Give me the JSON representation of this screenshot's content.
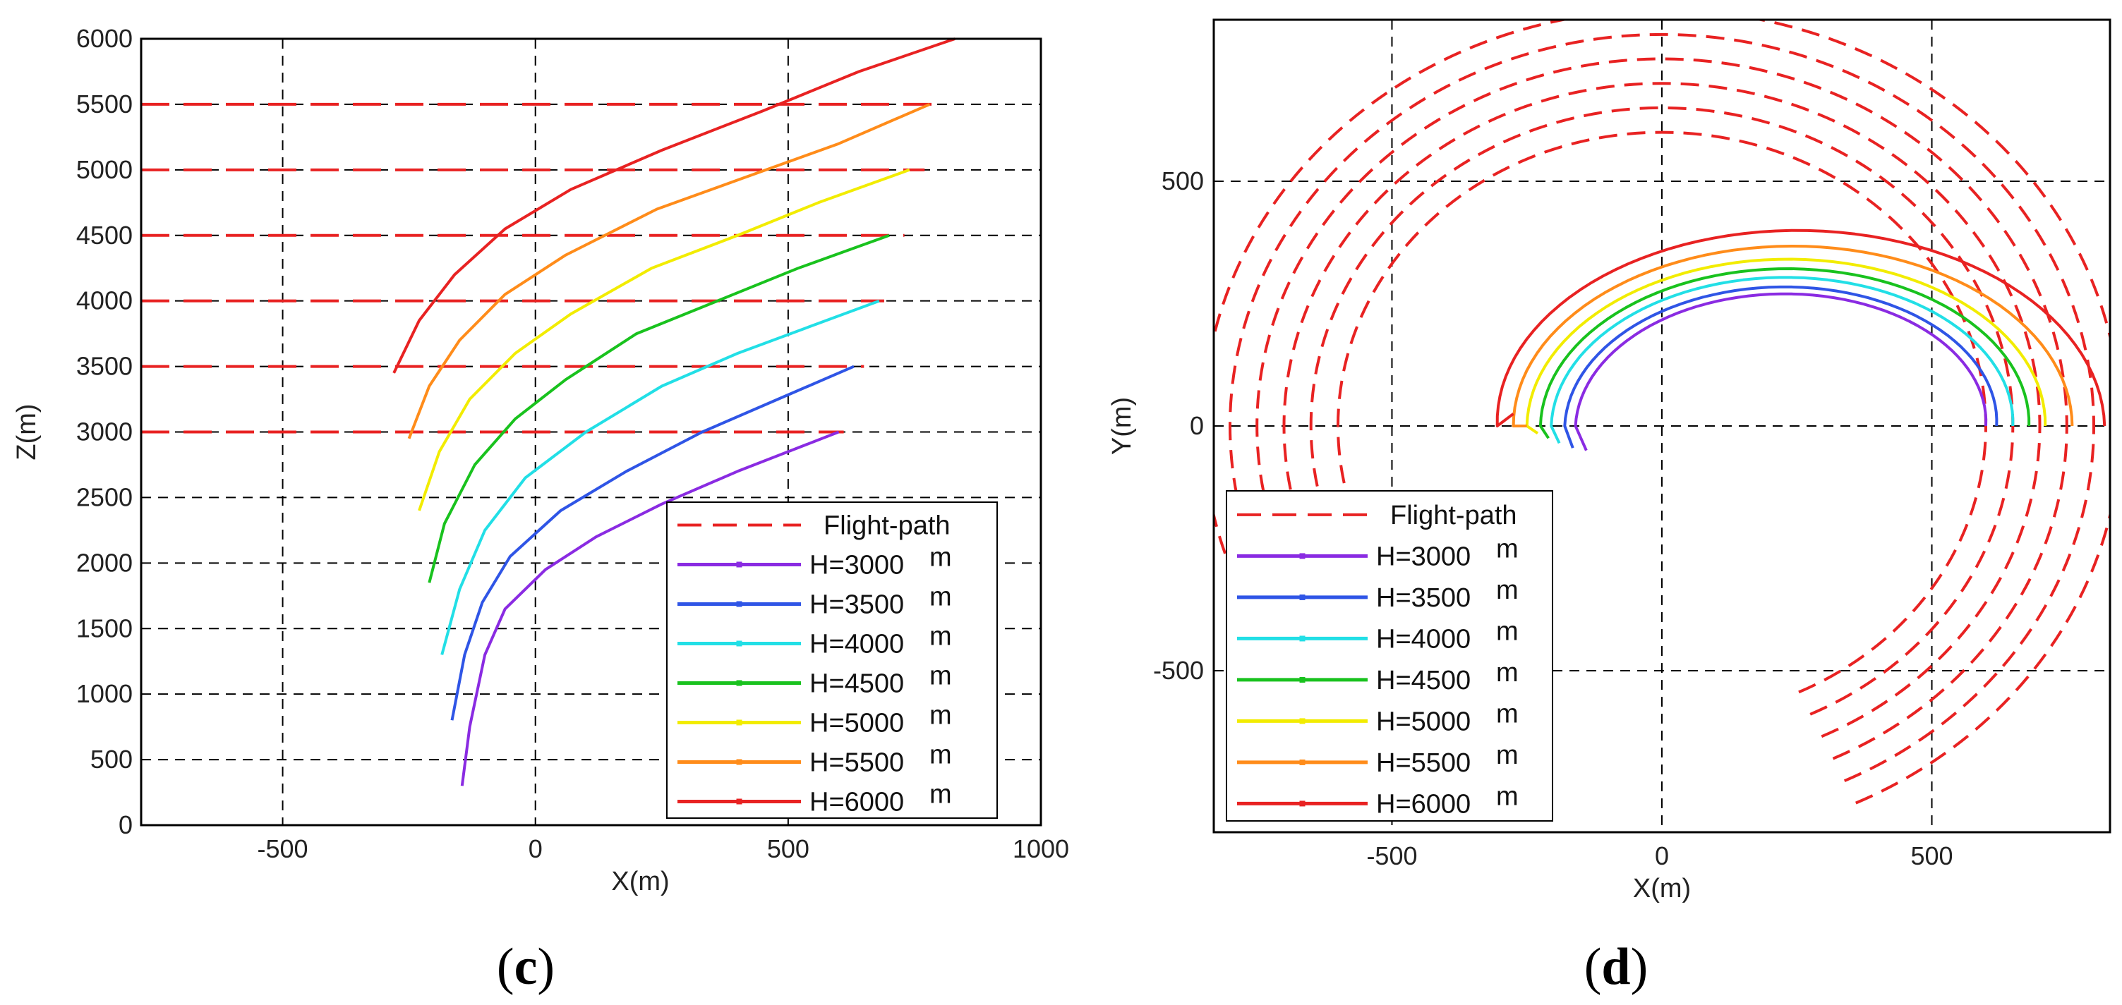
{
  "chart_data": [
    {
      "panel_label": "c",
      "type": "line",
      "xlabel": "X(m)",
      "ylabel": "Z(m)",
      "xlim": [
        -780,
        1000
      ],
      "ylim": [
        0,
        6000
      ],
      "xticks": [
        -500,
        0,
        500,
        1000
      ],
      "yticks": [
        0,
        500,
        1000,
        1500,
        2000,
        2500,
        3000,
        3500,
        4000,
        4500,
        5000,
        5500,
        6000
      ],
      "grid": true,
      "legend_position": "bottom-right",
      "flight_path_levels": [
        {
          "z": 3000,
          "x_range": [
            -780,
            610
          ]
        },
        {
          "z": 3500,
          "x_range": [
            -780,
            650
          ]
        },
        {
          "z": 4000,
          "x_range": [
            -780,
            690
          ]
        },
        {
          "z": 4500,
          "x_range": [
            -780,
            730
          ]
        },
        {
          "z": 5000,
          "x_range": [
            -780,
            770
          ]
        },
        {
          "z": 5500,
          "x_range": [
            -780,
            790
          ]
        }
      ],
      "series": [
        {
          "name": "H=3000",
          "unit": "m",
          "color": "#8a2be2",
          "points": [
            [
              -145,
              300
            ],
            [
              -130,
              750
            ],
            [
              -100,
              1300
            ],
            [
              -60,
              1650
            ],
            [
              20,
              1950
            ],
            [
              120,
              2200
            ],
            [
              250,
              2450
            ],
            [
              400,
              2700
            ],
            [
              600,
              3000
            ]
          ]
        },
        {
          "name": "H=3500",
          "unit": "m",
          "color": "#2f55e6",
          "points": [
            [
              -165,
              800
            ],
            [
              -140,
              1300
            ],
            [
              -105,
              1700
            ],
            [
              -50,
              2050
            ],
            [
              50,
              2400
            ],
            [
              180,
              2700
            ],
            [
              330,
              3000
            ],
            [
              480,
              3250
            ],
            [
              630,
              3500
            ]
          ]
        },
        {
          "name": "H=4000",
          "unit": "m",
          "color": "#22dfe6",
          "points": [
            [
              -185,
              1300
            ],
            [
              -150,
              1800
            ],
            [
              -100,
              2250
            ],
            [
              -20,
              2650
            ],
            [
              100,
              3000
            ],
            [
              250,
              3350
            ],
            [
              400,
              3600
            ],
            [
              540,
              3800
            ],
            [
              680,
              4000
            ]
          ]
        },
        {
          "name": "H=4500",
          "unit": "m",
          "color": "#19c21e",
          "points": [
            [
              -210,
              1850
            ],
            [
              -180,
              2300
            ],
            [
              -120,
              2750
            ],
            [
              -40,
              3100
            ],
            [
              60,
              3400
            ],
            [
              200,
              3750
            ],
            [
              360,
              4000
            ],
            [
              520,
              4250
            ],
            [
              700,
              4500
            ]
          ]
        },
        {
          "name": "H=5000",
          "unit": "m",
          "color": "#f2ec00",
          "points": [
            [
              -230,
              2400
            ],
            [
              -190,
              2850
            ],
            [
              -130,
              3250
            ],
            [
              -40,
              3600
            ],
            [
              70,
              3900
            ],
            [
              230,
              4250
            ],
            [
              400,
              4500
            ],
            [
              560,
              4750
            ],
            [
              740,
              5000
            ]
          ]
        },
        {
          "name": "H=5500",
          "unit": "m",
          "color": "#ff8c1a",
          "points": [
            [
              -250,
              2950
            ],
            [
              -210,
              3350
            ],
            [
              -150,
              3700
            ],
            [
              -60,
              4050
            ],
            [
              60,
              4350
            ],
            [
              240,
              4700
            ],
            [
              420,
              4950
            ],
            [
              600,
              5200
            ],
            [
              780,
              5500
            ]
          ]
        },
        {
          "name": "H=6000",
          "unit": "m",
          "color": "#e82222",
          "points": [
            [
              -280,
              3450
            ],
            [
              -230,
              3850
            ],
            [
              -160,
              4200
            ],
            [
              -60,
              4550
            ],
            [
              70,
              4850
            ],
            [
              250,
              5150
            ],
            [
              450,
              5450
            ],
            [
              640,
              5750
            ],
            [
              830,
              6000
            ]
          ]
        }
      ]
    },
    {
      "panel_label": "d",
      "type": "line",
      "xlabel": "X(m)",
      "ylabel": "Y(m)",
      "xlim": [
        -830,
        830
      ],
      "ylim": [
        -830,
        830
      ],
      "xticks": [
        -500,
        0,
        500
      ],
      "yticks": [
        -500,
        0,
        500
      ],
      "grid": true,
      "legend_position": "bottom-left",
      "flight_path_circles": {
        "radii_m": [
          600,
          650,
          700,
          750,
          800,
          850
        ],
        "hidden_arc_deg": [
          -115,
          -65
        ]
      },
      "series": [
        {
          "name": "H=3000",
          "unit": "m",
          "color": "#8a2be2",
          "arc": {
            "center": [
              240,
              0
            ],
            "r_start": 400,
            "r_end": 360,
            "deg_start": 180,
            "deg_end": 0
          },
          "tail": {
            "x": -140,
            "y": -50
          }
        },
        {
          "name": "H=3500",
          "unit": "m",
          "color": "#2f55e6",
          "arc": {
            "center": [
              240,
              0
            ],
            "r_start": 420,
            "r_end": 380,
            "deg_start": 180,
            "deg_end": 0
          },
          "tail": {
            "x": -165,
            "y": -45
          }
        },
        {
          "name": "H=4000",
          "unit": "m",
          "color": "#22dfe6",
          "arc": {
            "center": [
              240,
              0
            ],
            "r_start": 445,
            "r_end": 410,
            "deg_start": 180,
            "deg_end": 0
          },
          "tail": {
            "x": -190,
            "y": -35
          }
        },
        {
          "name": "H=4500",
          "unit": "m",
          "color": "#19c21e",
          "arc": {
            "center": [
              240,
              0
            ],
            "r_start": 465,
            "r_end": 440,
            "deg_start": 180,
            "deg_end": 0
          },
          "tail": {
            "x": -210,
            "y": -25
          }
        },
        {
          "name": "H=5000",
          "unit": "m",
          "color": "#f2ec00",
          "arc": {
            "center": [
              240,
              0
            ],
            "r_start": 490,
            "r_end": 470,
            "deg_start": 180,
            "deg_end": 0
          },
          "tail": {
            "x": -230,
            "y": -15
          }
        },
        {
          "name": "H=5500",
          "unit": "m",
          "color": "#ff8c1a",
          "arc": {
            "center": [
              240,
              0
            ],
            "r_start": 515,
            "r_end": 520,
            "deg_start": 180,
            "deg_end": 0
          },
          "tail": {
            "x": -250,
            "y": 0
          }
        },
        {
          "name": "H=6000",
          "unit": "m",
          "color": "#e82222",
          "arc": {
            "center": [
              240,
              0
            ],
            "r_start": 545,
            "r_end": 580,
            "deg_start": 180,
            "deg_end": 0
          },
          "tail": {
            "x": -275,
            "y": 25
          }
        }
      ]
    }
  ],
  "legend": {
    "flight_path_label": "Flight-path",
    "flight_path_color": "#e82222",
    "entries": [
      {
        "label": "H=3000",
        "unit": "m",
        "color": "#8a2be2"
      },
      {
        "label": "H=3500",
        "unit": "m",
        "color": "#2f55e6"
      },
      {
        "label": "H=4000",
        "unit": "m",
        "color": "#22dfe6"
      },
      {
        "label": "H=4500",
        "unit": "m",
        "color": "#19c21e"
      },
      {
        "label": "H=5000",
        "unit": "m",
        "color": "#f2ec00"
      },
      {
        "label": "H=5500",
        "unit": "m",
        "color": "#ff8c1a"
      },
      {
        "label": "H=6000",
        "unit": "m",
        "color": "#e82222"
      }
    ]
  },
  "captions": {
    "c": {
      "open": "(",
      "letter": "c",
      "close": ")"
    },
    "d": {
      "open": "(",
      "letter": "d",
      "close": ")"
    }
  }
}
